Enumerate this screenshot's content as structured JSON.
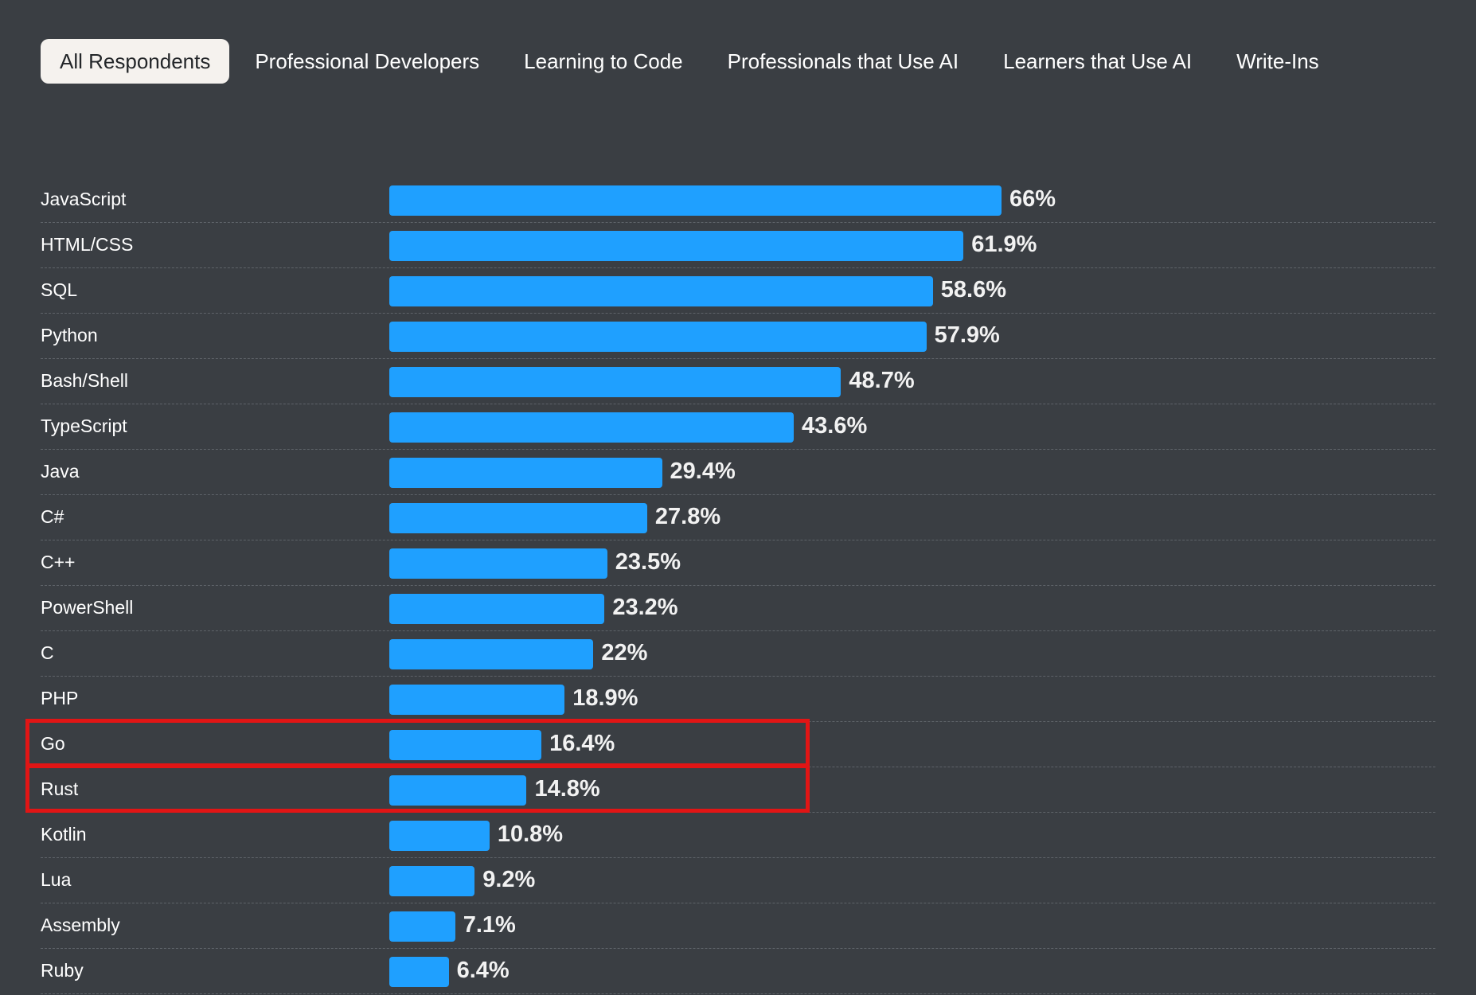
{
  "tabs": [
    {
      "label": "All Respondents",
      "active": true
    },
    {
      "label": "Professional Developers",
      "active": false
    },
    {
      "label": "Learning to Code",
      "active": false
    },
    {
      "label": "Professionals that Use AI",
      "active": false
    },
    {
      "label": "Learners that Use AI",
      "active": false
    },
    {
      "label": "Write-Ins",
      "active": false
    }
  ],
  "colors": {
    "background": "#3a3e43",
    "bar": "#1fa0ff",
    "highlight": "#e11515",
    "active_tab": "#f5f2ee"
  },
  "chart_data": {
    "type": "bar",
    "orientation": "horizontal",
    "categories": [
      "JavaScript",
      "HTML/CSS",
      "SQL",
      "Python",
      "Bash/Shell",
      "TypeScript",
      "Java",
      "C#",
      "C++",
      "PowerShell",
      "C",
      "PHP",
      "Go",
      "Rust",
      "Kotlin",
      "Lua",
      "Assembly",
      "Ruby"
    ],
    "values": [
      66,
      61.9,
      58.6,
      57.9,
      48.7,
      43.6,
      29.4,
      27.8,
      23.5,
      23.2,
      22,
      18.9,
      16.4,
      14.8,
      10.8,
      9.2,
      7.1,
      6.4
    ],
    "value_labels": [
      "66%",
      "61.9%",
      "58.6%",
      "57.9%",
      "48.7%",
      "43.6%",
      "29.4%",
      "27.8%",
      "23.5%",
      "23.2%",
      "22%",
      "18.9%",
      "16.4%",
      "14.8%",
      "10.8%",
      "9.2%",
      "7.1%",
      "6.4%"
    ],
    "highlighted": [
      "Go",
      "Rust"
    ],
    "title": "",
    "xlabel": "",
    "ylabel": "",
    "grid": false
  }
}
